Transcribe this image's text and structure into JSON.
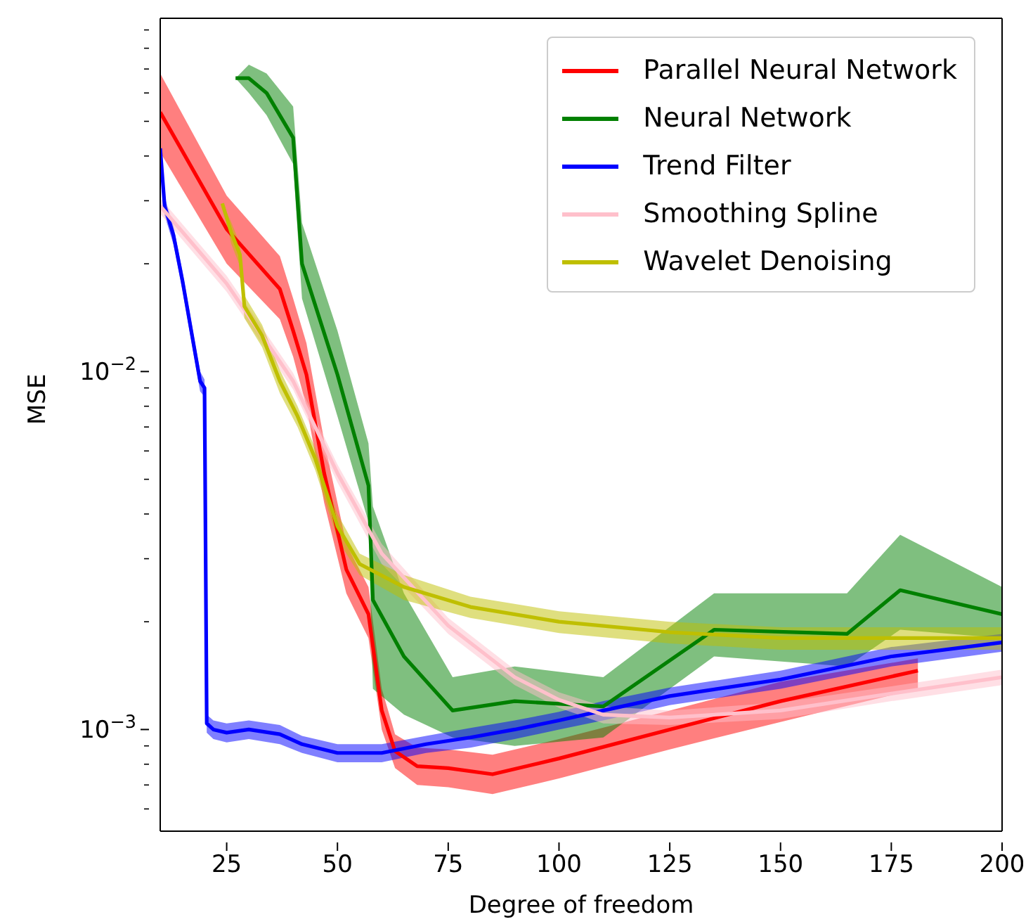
{
  "chart_data": {
    "type": "line",
    "xlabel": "Degree of freedom",
    "ylabel": "MSE",
    "log": "y",
    "legend": "top right",
    "xlim": [
      10,
      200
    ],
    "xticks": [
      25,
      50,
      75,
      100,
      125,
      150,
      175,
      200
    ],
    "ylim": [
      0.00052,
      0.097
    ],
    "yticks": [
      {
        "value": 0.0006,
        "label": null
      },
      {
        "value": 0.0007,
        "label": null
      },
      {
        "value": 0.0008,
        "label": null
      },
      {
        "value": 0.0009,
        "label": null
      },
      {
        "value": 0.001,
        "label": "10$^{−3}$"
      },
      {
        "value": 0.002,
        "label": null
      },
      {
        "value": 0.003,
        "label": null
      },
      {
        "value": 0.004,
        "label": null
      },
      {
        "value": 0.005,
        "label": null
      },
      {
        "value": 0.006,
        "label": null
      },
      {
        "value": 0.007,
        "label": null
      },
      {
        "value": 0.008,
        "label": null
      },
      {
        "value": 0.009,
        "label": null
      },
      {
        "value": 0.01,
        "label": "10$^{−2}$"
      },
      {
        "value": 0.02,
        "label": null
      },
      {
        "value": 0.03,
        "label": null
      },
      {
        "value": 0.04,
        "label": null
      },
      {
        "value": 0.05,
        "label": null
      },
      {
        "value": 0.06,
        "label": null
      },
      {
        "value": 0.07,
        "label": null
      },
      {
        "value": 0.08,
        "label": null
      },
      {
        "value": 0.09,
        "label": null
      }
    ],
    "series": [
      {
        "name": "Parallel Neural Network",
        "color": "#ff0000",
        "x": [
          10,
          25,
          37,
          40,
          43,
          47,
          52,
          57,
          60,
          63,
          68,
          75,
          85,
          100,
          125,
          150,
          181
        ],
        "values": [
          0.053,
          0.025,
          0.017,
          0.013,
          0.0098,
          0.0052,
          0.0028,
          0.0021,
          0.00113,
          0.00087,
          0.00079,
          0.00078,
          0.00075,
          0.00083,
          0.001,
          0.0012,
          0.00146
        ],
        "lower": [
          0.041,
          0.02,
          0.014,
          0.011,
          0.008,
          0.0043,
          0.0024,
          0.0018,
          0.001,
          0.00078,
          0.0007,
          0.00069,
          0.00066,
          0.00073,
          0.00088,
          0.00105,
          0.0013
        ],
        "upper": [
          0.068,
          0.031,
          0.021,
          0.016,
          0.012,
          0.0064,
          0.0033,
          0.0025,
          0.0013,
          0.00097,
          0.00089,
          0.00088,
          0.00085,
          0.00094,
          0.00113,
          0.00136,
          0.00158
        ]
      },
      {
        "name": "Neural Network",
        "color": "#008000",
        "x": [
          27,
          30,
          34,
          40,
          42,
          50,
          57,
          58,
          65,
          76,
          90,
          110,
          135,
          165,
          177,
          200
        ],
        "values": [
          0.066,
          0.066,
          0.06,
          0.045,
          0.02,
          0.0098,
          0.0048,
          0.0023,
          0.0016,
          0.00113,
          0.0012,
          0.00116,
          0.0019,
          0.00185,
          0.00245,
          0.0021
        ],
        "lower": [
          0.066,
          0.06,
          0.052,
          0.038,
          0.016,
          0.0075,
          0.0038,
          0.0013,
          0.0011,
          0.00095,
          0.0009,
          0.00095,
          0.0016,
          0.0015,
          0.0019,
          0.0018
        ],
        "upper": [
          0.066,
          0.072,
          0.068,
          0.055,
          0.026,
          0.013,
          0.0063,
          0.0042,
          0.0024,
          0.0014,
          0.0015,
          0.0014,
          0.0024,
          0.0024,
          0.0035,
          0.0025
        ]
      },
      {
        "name": "Trend Filter",
        "color": "#0000ff",
        "x": [
          10,
          11,
          13,
          15,
          17,
          19,
          20,
          20.5,
          22,
          25,
          30,
          37,
          42,
          50,
          60,
          70,
          80,
          90,
          100,
          110,
          125,
          150,
          175,
          200
        ],
        "values": [
          0.042,
          0.029,
          0.024,
          0.018,
          0.013,
          0.0094,
          0.009,
          0.00104,
          0.001,
          0.00098,
          0.001,
          0.00097,
          0.00091,
          0.00086,
          0.00086,
          0.00091,
          0.00095,
          0.001,
          0.00106,
          0.00113,
          0.00124,
          0.00138,
          0.0016,
          0.00175
        ],
        "lower": [
          0.0395,
          0.0273,
          0.0226,
          0.0169,
          0.0122,
          0.0088,
          0.0085,
          0.00098,
          0.00094,
          0.00092,
          0.00094,
          0.00091,
          0.00086,
          0.00081,
          0.00081,
          0.00086,
          0.00089,
          0.00094,
          0.001,
          0.00106,
          0.00117,
          0.0013,
          0.0015,
          0.00165
        ],
        "upper": [
          0.0445,
          0.0307,
          0.0254,
          0.0191,
          0.0138,
          0.01,
          0.0095,
          0.0011,
          0.00106,
          0.00104,
          0.00106,
          0.00103,
          0.00096,
          0.00091,
          0.00091,
          0.00096,
          0.00101,
          0.00106,
          0.00112,
          0.0012,
          0.00131,
          0.00146,
          0.0017,
          0.00185
        ]
      },
      {
        "name": "Smoothing Spline",
        "color": "#ffc0cb",
        "x": [
          10,
          25,
          40,
          50,
          60,
          75,
          90,
          100,
          110,
          125,
          150,
          175,
          200
        ],
        "values": [
          0.029,
          0.0176,
          0.0094,
          0.0052,
          0.0031,
          0.00195,
          0.0014,
          0.00121,
          0.0011,
          0.00108,
          0.00113,
          0.00126,
          0.0014
        ],
        "lower": [
          0.0276,
          0.0167,
          0.0089,
          0.0049,
          0.0029,
          0.00185,
          0.00133,
          0.00115,
          0.00104,
          0.00103,
          0.00107,
          0.0012,
          0.00133
        ],
        "upper": [
          0.0305,
          0.0185,
          0.0099,
          0.0055,
          0.0033,
          0.00205,
          0.00147,
          0.00127,
          0.00116,
          0.00113,
          0.00119,
          0.00132,
          0.00147
        ]
      },
      {
        "name": "Wavelet Denoising",
        "color": "#bfbf00",
        "x": [
          24,
          26,
          28,
          29,
          33,
          37,
          41,
          45,
          50,
          55,
          65,
          80,
          100,
          125,
          150,
          200
        ],
        "values": [
          0.0295,
          0.0245,
          0.0212,
          0.0152,
          0.0126,
          0.0094,
          0.0075,
          0.0057,
          0.0037,
          0.0029,
          0.0025,
          0.0022,
          0.002,
          0.00187,
          0.0018,
          0.0018
        ],
        "lower": [
          0.0295,
          0.0228,
          0.0197,
          0.0141,
          0.0117,
          0.0087,
          0.007,
          0.0053,
          0.0034,
          0.0027,
          0.0023,
          0.00205,
          0.00186,
          0.00174,
          0.00167,
          0.00167
        ],
        "upper": [
          0.0295,
          0.0262,
          0.0227,
          0.0163,
          0.0135,
          0.0101,
          0.008,
          0.0061,
          0.004,
          0.0031,
          0.0027,
          0.00235,
          0.00214,
          0.002,
          0.00193,
          0.00193
        ]
      }
    ]
  }
}
